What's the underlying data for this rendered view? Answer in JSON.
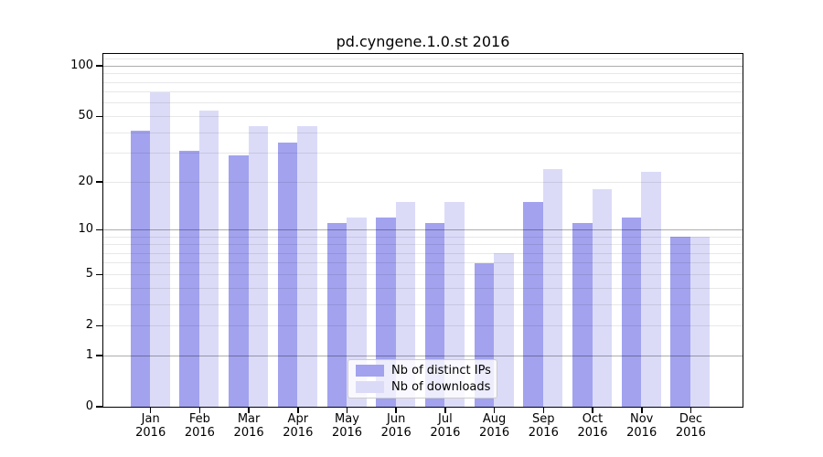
{
  "title": "pd.cyngene.1.0.st 2016",
  "chart_data": {
    "type": "bar",
    "title": "pd.cyngene.1.0.st 2016",
    "categories": [
      "Jan",
      "Feb",
      "Mar",
      "Apr",
      "May",
      "Jun",
      "Jul",
      "Aug",
      "Sep",
      "Oct",
      "Nov",
      "Dec"
    ],
    "year_label": "2016",
    "series": [
      {
        "name": "Nb of distinct IPs",
        "color": "#a2a2ef",
        "values": [
          41,
          31,
          29,
          35,
          11,
          12,
          11,
          6,
          15,
          11,
          12,
          9
        ]
      },
      {
        "name": "Nb of downloads",
        "color": "#dbdbf8",
        "values": [
          70,
          54,
          44,
          44,
          12,
          15,
          15,
          7,
          24,
          18,
          23,
          9
        ]
      }
    ],
    "yscale": "log1p",
    "ylim": [
      0,
      118
    ],
    "ytick_values": [
      100,
      50,
      20,
      10,
      5,
      2,
      1,
      0
    ],
    "ytick_labels": [
      "100",
      "50",
      "20",
      "10",
      "5",
      "2",
      "1",
      "0"
    ],
    "major_grid_values": [
      1,
      10,
      100
    ],
    "minor_grid_values": [
      2,
      3,
      4,
      5,
      6,
      7,
      8,
      9,
      20,
      30,
      40,
      50,
      60,
      70,
      80,
      90,
      110
    ],
    "grid": true,
    "legend_position": "lower center"
  },
  "colors": {
    "bar_distinct_ips": "#a2a2ef",
    "bar_downloads": "#dbdbf8",
    "axis": "#000000",
    "grid_major": "rgba(0,0,0,0.32)",
    "grid_minor": "rgba(0,0,0,0.09)",
    "legend_border": "#cccccc",
    "background": "#ffffff"
  }
}
